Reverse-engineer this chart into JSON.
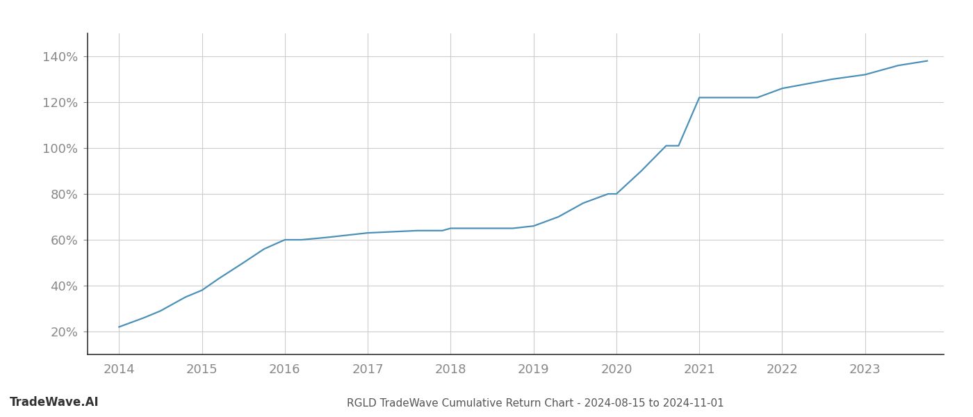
{
  "title": "RGLD TradeWave Cumulative Return Chart - 2024-08-15 to 2024-11-01",
  "watermark": "TradeWave.AI",
  "line_color": "#4a90b8",
  "background_color": "#ffffff",
  "grid_color": "#cccccc",
  "x_years": [
    2014,
    2015,
    2016,
    2017,
    2018,
    2019,
    2020,
    2021,
    2022,
    2023
  ],
  "x_data": [
    2014.0,
    2014.15,
    2014.3,
    2014.5,
    2014.65,
    2014.8,
    2015.0,
    2015.2,
    2015.5,
    2015.75,
    2016.0,
    2016.2,
    2016.5,
    2016.75,
    2017.0,
    2017.3,
    2017.6,
    2017.9,
    2018.0,
    2018.3,
    2018.6,
    2018.75,
    2019.0,
    2019.3,
    2019.6,
    2019.9,
    2020.0,
    2020.3,
    2020.6,
    2020.75,
    2021.0,
    2021.15,
    2021.4,
    2021.7,
    2022.0,
    2022.3,
    2022.6,
    2023.0,
    2023.4,
    2023.75
  ],
  "y_data": [
    22,
    24,
    26,
    29,
    32,
    35,
    38,
    43,
    50,
    56,
    60,
    60,
    61,
    62,
    63,
    63.5,
    64,
    64,
    65,
    65,
    65,
    65,
    66,
    70,
    76,
    80,
    80,
    90,
    101,
    101,
    122,
    122,
    122,
    122,
    126,
    128,
    130,
    132,
    136,
    138
  ],
  "ylim": [
    10,
    150
  ],
  "yticks": [
    20,
    40,
    60,
    80,
    100,
    120,
    140
  ],
  "ytick_labels": [
    "20%",
    "40%",
    "60%",
    "80%",
    "100%",
    "120%",
    "140%"
  ],
  "xlim": [
    2013.62,
    2023.95
  ],
  "title_fontsize": 11,
  "watermark_fontsize": 12,
  "tick_fontsize": 13,
  "tick_color": "#888888",
  "title_color": "#555555",
  "line_width": 1.6,
  "left_spine_color": "#333333"
}
